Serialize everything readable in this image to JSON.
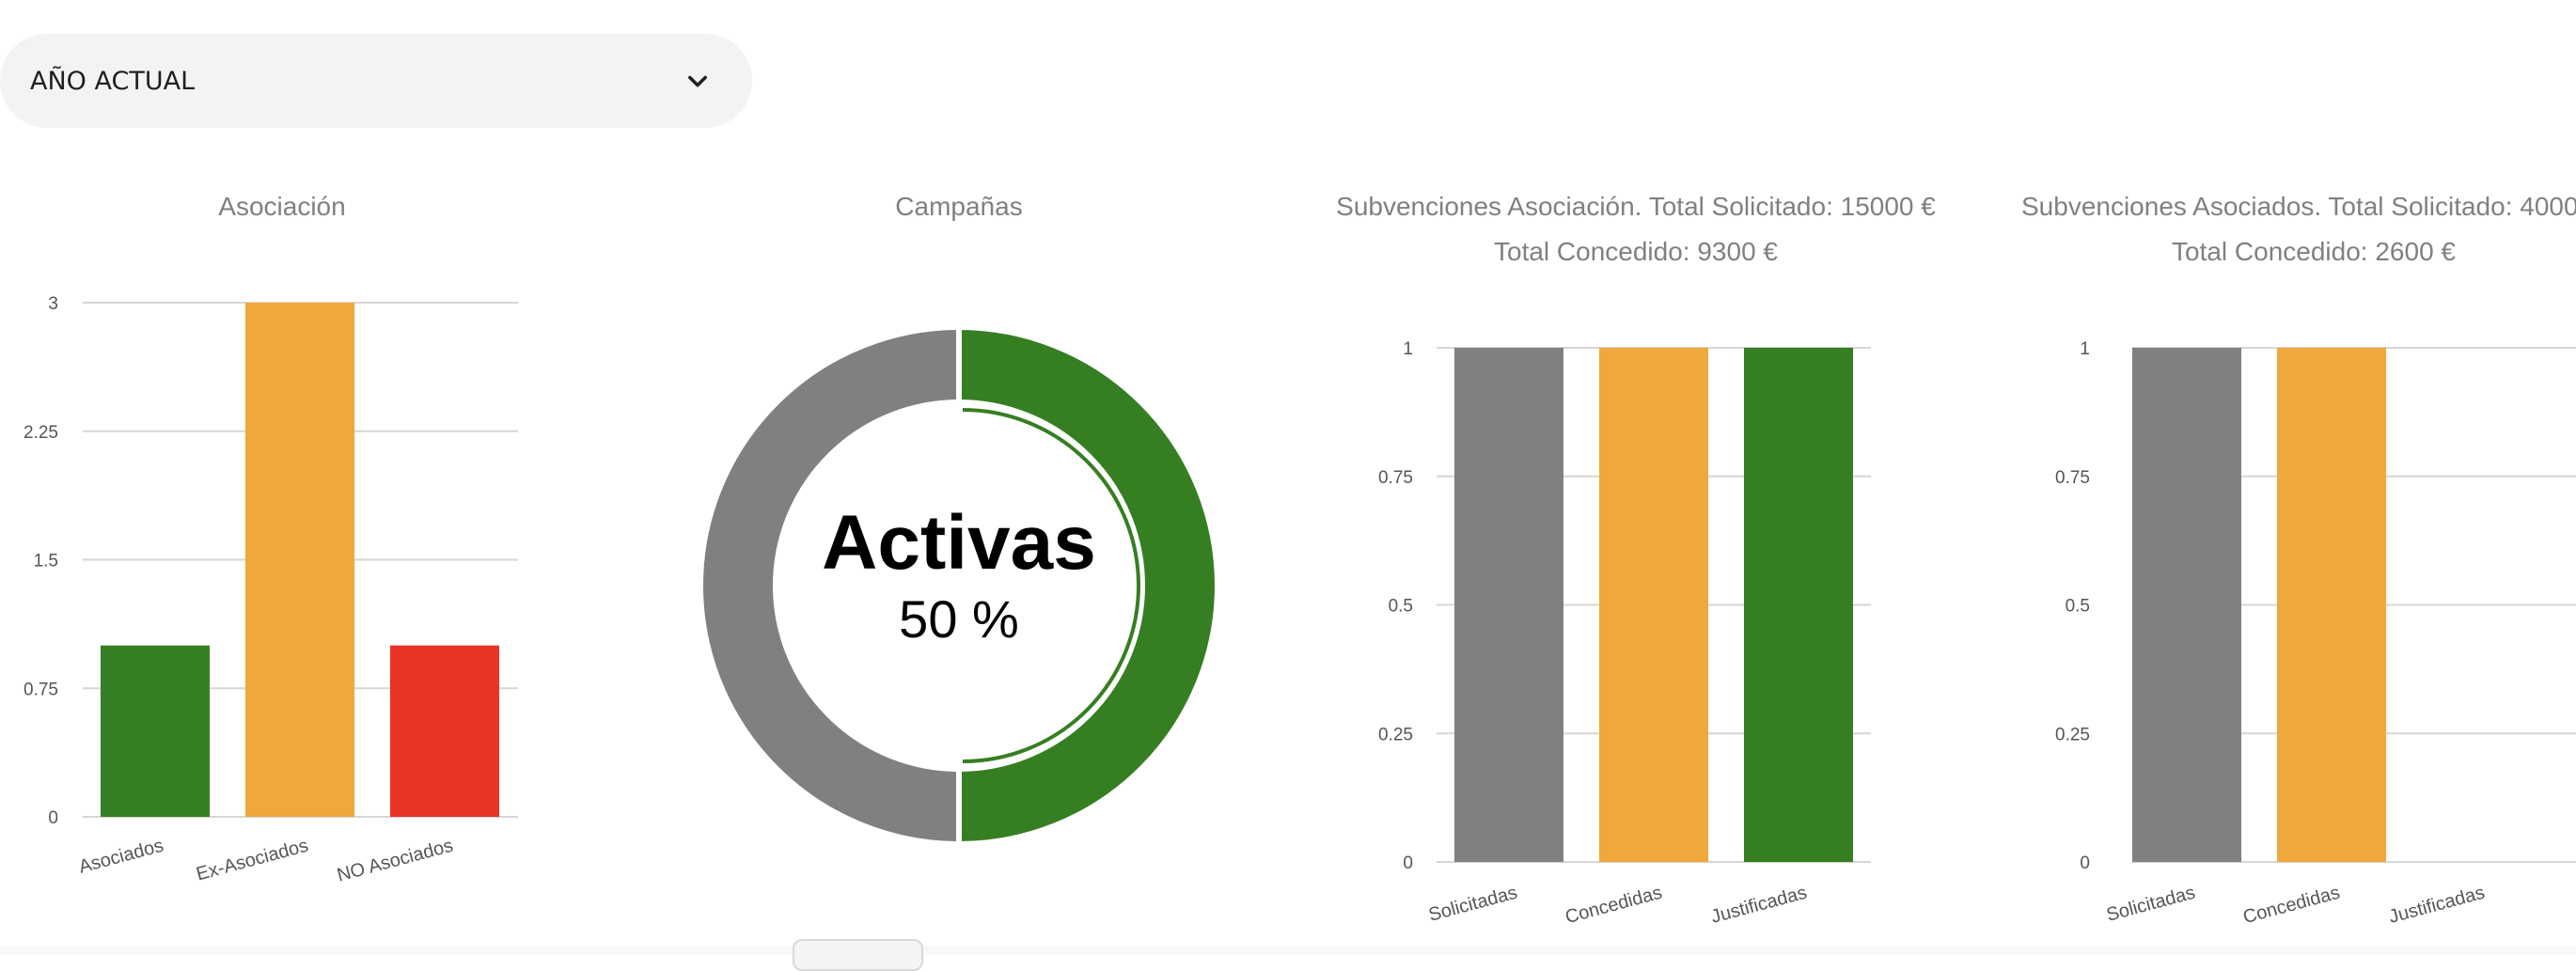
{
  "filter": {
    "selected": "AÑO ACTUAL",
    "icon": "chevron-down-icon"
  },
  "charts": [
    {
      "title": "Asociación",
      "chart_data": {
        "type": "bar",
        "categories": [
          "Asociados",
          "Ex-Asociados",
          "NO Asociados"
        ],
        "values": [
          1,
          3,
          1
        ],
        "colors": [
          "#367e22",
          "#f0a83c",
          "#e93325"
        ],
        "yticks": [
          "0",
          "0.75",
          "1.5",
          "2.25",
          "3"
        ],
        "ylim": [
          0,
          3
        ],
        "grid": true
      }
    },
    {
      "title": "Campañas",
      "chart_data": {
        "type": "pie",
        "style": "donut",
        "slices": [
          {
            "label": "Activas",
            "value": 50,
            "color": "#367e22"
          },
          {
            "value": 50,
            "color": "#808080"
          }
        ],
        "center_label": "Activas",
        "center_value": "50 %"
      }
    },
    {
      "title": "Subvenciones Asociación. Total Solicitado: 15000 €",
      "subtitle": "Total Concedido: 9300 €",
      "chart_data": {
        "type": "bar",
        "categories": [
          "Solicitadas",
          "Concedidas",
          "Justificadas"
        ],
        "values": [
          1,
          1,
          1
        ],
        "colors": [
          "#808080",
          "#f0a83c",
          "#367e22"
        ],
        "yticks": [
          "0",
          "0.25",
          "0.5",
          "0.75",
          "1"
        ],
        "ylim": [
          0,
          1
        ],
        "grid": true
      }
    },
    {
      "title": "Subvenciones Asociados. Total Solicitado: 4000",
      "subtitle": "Total Concedido: 2600 €",
      "chart_data": {
        "type": "bar",
        "categories": [
          "Solicitadas",
          "Concedidas",
          "Justificadas"
        ],
        "values": [
          1,
          1,
          0
        ],
        "colors": [
          "#808080",
          "#f0a83c",
          "#367e22"
        ],
        "yticks": [
          "0",
          "0.25",
          "0.5",
          "0.75",
          "1"
        ],
        "ylim": [
          0,
          1
        ],
        "grid": true
      }
    }
  ]
}
